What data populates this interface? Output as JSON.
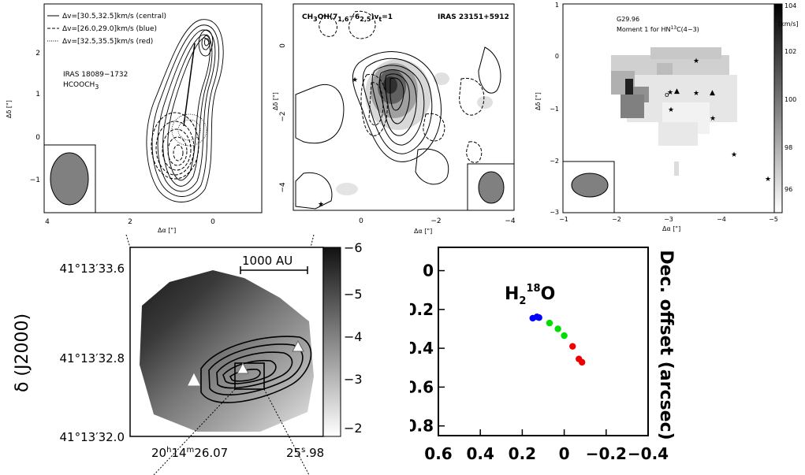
{
  "panels": {
    "p1": {
      "legend": [
        {
          "style": "solid",
          "label": "Δv=[30.5,32.5]km/s (central)"
        },
        {
          "style": "dashed",
          "label": "Δv=[26.0,29.0]km/s (blue)"
        },
        {
          "style": "dotted",
          "label": "Δv=[32.5,35.5]km/s (red)"
        }
      ],
      "source": "IRAS 18089−1732",
      "molecule": "HCOOCH",
      "molecule_sub": "3",
      "xlabel": "Δα [\"]",
      "ylabel": "Δδ [\"]",
      "xticks": [
        "4",
        "2",
        "0"
      ],
      "yticks": [
        "2",
        "1",
        "0",
        "−1"
      ]
    },
    "p2": {
      "line_main": "CH",
      "line_sub": "3",
      "line_rest": "OH(7",
      "line_sub2": "1,6",
      "line_rest2": "−6",
      "line_sub3": "2,5",
      "line_rest3": ")v",
      "line_sub4": "t",
      "line_rest4": "=1",
      "source": "IRAS 23151+5912",
      "xlabel": "Δα [\"]",
      "ylabel": "Δδ [\"]",
      "xticks": [
        "0",
        "−2",
        "−4"
      ],
      "yticks": [
        "0",
        "−2",
        "−4"
      ]
    },
    "p3": {
      "source": "G29.96",
      "moment_pre": "Moment 1 for HN",
      "moment_sup": "13",
      "moment_post": "C(4−3)",
      "xlabel": "Δα [\"]",
      "ylabel": "Δδ [\"]",
      "xticks": [
        "−1",
        "−2",
        "−3",
        "−4",
        "−5"
      ],
      "yticks": [
        "1",
        "0",
        "−1",
        "−2",
        "−3"
      ],
      "colorbar_ticks": [
        "104",
        "102",
        "100",
        "98",
        "96"
      ],
      "colorbar_unit": "[km/s]"
    },
    "p4": {
      "scalebar": "1000 AU",
      "ylabel": "δ (J2000)",
      "yticks": [
        "41°13′33.6",
        "41°13′32.8",
        "41°13′32.0"
      ],
      "xtick_left": "20",
      "xtick_left_h": "h",
      "xtick_left_m": "14",
      "xtick_left_mm": "m",
      "xtick_left_s": "26.07",
      "xtick_right_s": "25",
      "xtick_right_sup": "s",
      "xtick_right_rest": ".98",
      "colorbar_ticks": [
        "−6",
        "−5",
        "−4",
        "−3",
        "−2"
      ]
    },
    "p5": {
      "label_pre": "H",
      "label_sub": "2",
      "label_sup": "18",
      "label_post": "O",
      "ylabel": "Dec. offset (arcsec)"
    }
  },
  "chart_data": {
    "type": "scatter",
    "title": "",
    "xlabel": "",
    "ylabel": "Dec. offset (arcsec)",
    "xlim": [
      0.6,
      -0.4
    ],
    "ylim": [
      -0.85,
      0.12
    ],
    "xticks": [
      0.6,
      0.4,
      0.2,
      0,
      -0.2,
      -0.4
    ],
    "xtick_labels": [
      "0.6",
      "0.4",
      "0.2",
      "0",
      "−0.2",
      "−0.4"
    ],
    "yticks": [
      0,
      -0.2,
      -0.4,
      -0.6,
      -0.8
    ],
    "ytick_labels": [
      "0",
      "−0.2",
      "−0.4",
      "−0.6",
      "−0.8"
    ],
    "grid": false,
    "points": [
      {
        "x": 0.15,
        "y": -0.245,
        "color": "#0000ff"
      },
      {
        "x": 0.13,
        "y": -0.238,
        "color": "#0000ff"
      },
      {
        "x": 0.12,
        "y": -0.242,
        "color": "#0000ff"
      },
      {
        "x": 0.07,
        "y": -0.27,
        "color": "#00dd00"
      },
      {
        "x": 0.03,
        "y": -0.3,
        "color": "#00dd00"
      },
      {
        "x": 0.0,
        "y": -0.335,
        "color": "#00dd00"
      },
      {
        "x": -0.04,
        "y": -0.39,
        "color": "#ee0000"
      },
      {
        "x": -0.07,
        "y": -0.455,
        "color": "#ee0000"
      },
      {
        "x": -0.085,
        "y": -0.472,
        "color": "#ee0000"
      }
    ]
  }
}
